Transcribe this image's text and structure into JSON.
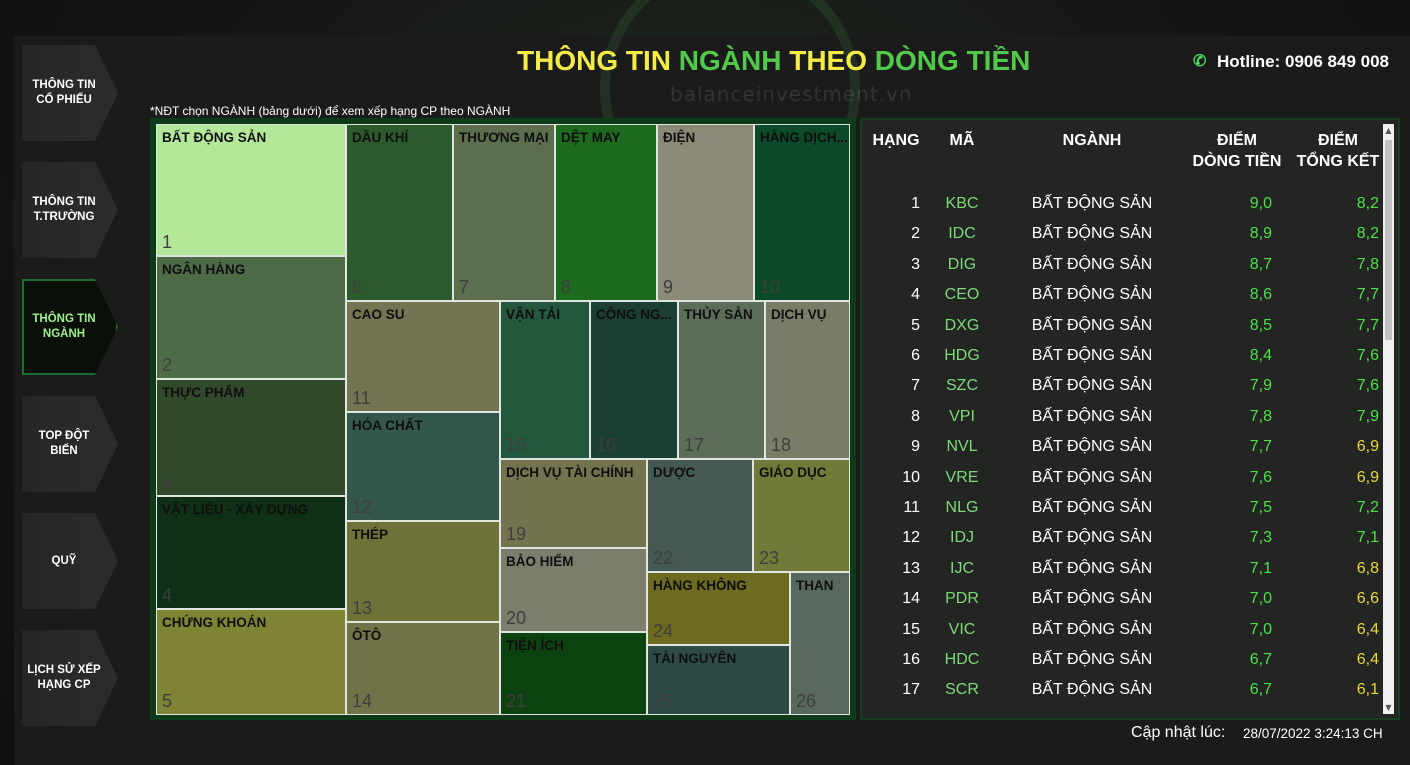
{
  "header": {
    "title_parts": [
      "THÔNG TIN",
      "NGÀNH",
      "THEO",
      "DÒNG TIỀN"
    ],
    "hotline": "Hotline: 0906 849 008",
    "watermark": "balanceinvestment.vn"
  },
  "nav": [
    {
      "label": "THÔNG TIN CỔ PHIẾU"
    },
    {
      "label": "THÔNG TIN T.TRƯỜNG"
    },
    {
      "label": "THÔNG TIN NGÀNH",
      "active": true
    },
    {
      "label": "TOP ĐỘT BIẾN"
    },
    {
      "label": "QUỸ"
    },
    {
      "label": "LỊCH SỬ XẾP HẠNG CP"
    }
  ],
  "note": "*NĐT chọn NGÀNH (bảng dưới) để xem xếp hạng CP theo NGÀNH",
  "treemap": [
    {
      "name": "BẤT ĐỘNG SẢN",
      "rank": "1",
      "color": "#b3e89a"
    },
    {
      "name": "NGÂN HÀNG",
      "rank": "2",
      "color": "#4d6b47"
    },
    {
      "name": "THỰC PHẨM",
      "rank": "3",
      "color": "#314a2c"
    },
    {
      "name": "VẬT LIỆU - XÂY DỰNG",
      "rank": "4",
      "color": "#0f3016"
    },
    {
      "name": "CHỨNG KHOÁN",
      "rank": "5",
      "color": "#7e8434"
    },
    {
      "name": "DẦU KHÍ",
      "rank": "6",
      "color": "#2d5a2d"
    },
    {
      "name": "THƯƠNG MẠI",
      "rank": "7",
      "color": "#5c6e4e"
    },
    {
      "name": "DỆT MAY",
      "rank": "8",
      "color": "#1e6a1e"
    },
    {
      "name": "ĐIỆN",
      "rank": "9",
      "color": "#8a8a76"
    },
    {
      "name": "HÀNG DỊCH...",
      "rank": "10",
      "color": "#0d4a2b"
    },
    {
      "name": "CAO SU",
      "rank": "11",
      "color": "#727452"
    },
    {
      "name": "HÓA CHẤT",
      "rank": "12",
      "color": "#33574a"
    },
    {
      "name": "THÉP",
      "rank": "13",
      "color": "#6f7238"
    },
    {
      "name": "ÔTÔ",
      "rank": "14",
      "color": "#727249"
    },
    {
      "name": "VẬN TẢI",
      "rank": "15",
      "color": "#23573e"
    },
    {
      "name": "CÔNG NG...",
      "rank": "16",
      "color": "#1b3f34"
    },
    {
      "name": "THỦY SẢN",
      "rank": "17",
      "color": "#5c6e57"
    },
    {
      "name": "DỊCH VỤ",
      "rank": "18",
      "color": "#7b7c67"
    },
    {
      "name": "DỊCH VỤ TÀI CHÍNH",
      "rank": "19",
      "color": "#73744f"
    },
    {
      "name": "BẢO HIỂM",
      "rank": "20",
      "color": "#7c7d6a"
    },
    {
      "name": "TIỆN ÍCH",
      "rank": "21",
      "color": "#0c4110"
    },
    {
      "name": "DƯỢC",
      "rank": "22",
      "color": "#445953"
    },
    {
      "name": "GIÁO DỤC",
      "rank": "23",
      "color": "#727a39"
    },
    {
      "name": "HÀNG KHÔNG",
      "rank": "24",
      "color": "#6e6a1f"
    },
    {
      "name": "TÀI NGUYÊN",
      "rank": "25",
      "color": "#2d4a44"
    },
    {
      "name": "THAN",
      "rank": "26",
      "color": "#57685c"
    }
  ],
  "table": {
    "headers": {
      "rank": "HẠNG",
      "code": "MÃ",
      "industry": "NGÀNH",
      "cashflow": "ĐIỂM\nDÒNG TIỀN",
      "total": "ĐIỂM\nTỔNG KẾT"
    },
    "rows": [
      {
        "rank": "1",
        "code": "KBC",
        "industry": "BẤT ĐỘNG SẢN",
        "cashflow": "9,0",
        "total": "8,2",
        "total_color": "#4ee04a"
      },
      {
        "rank": "2",
        "code": "IDC",
        "industry": "BẤT ĐỘNG SẢN",
        "cashflow": "8,9",
        "total": "8,2",
        "total_color": "#4ee04a"
      },
      {
        "rank": "3",
        "code": "DIG",
        "industry": "BẤT ĐỘNG SẢN",
        "cashflow": "8,7",
        "total": "7,8",
        "total_color": "#4ee04a"
      },
      {
        "rank": "4",
        "code": "CEO",
        "industry": "BẤT ĐỘNG SẢN",
        "cashflow": "8,6",
        "total": "7,7",
        "total_color": "#4ee04a"
      },
      {
        "rank": "5",
        "code": "DXG",
        "industry": "BẤT ĐỘNG SẢN",
        "cashflow": "8,5",
        "total": "7,7",
        "total_color": "#4ee04a"
      },
      {
        "rank": "6",
        "code": "HDG",
        "industry": "BẤT ĐỘNG SẢN",
        "cashflow": "8,4",
        "total": "7,6",
        "total_color": "#4ee04a"
      },
      {
        "rank": "7",
        "code": "SZC",
        "industry": "BẤT ĐỘNG SẢN",
        "cashflow": "7,9",
        "total": "7,6",
        "total_color": "#4ee04a"
      },
      {
        "rank": "8",
        "code": "VPI",
        "industry": "BẤT ĐỘNG SẢN",
        "cashflow": "7,8",
        "total": "7,9",
        "total_color": "#4ee04a"
      },
      {
        "rank": "9",
        "code": "NVL",
        "industry": "BẤT ĐỘNG SẢN",
        "cashflow": "7,7",
        "total": "6,9",
        "total_color": "#e8d83e"
      },
      {
        "rank": "10",
        "code": "VRE",
        "industry": "BẤT ĐỘNG SẢN",
        "cashflow": "7,6",
        "total": "6,9",
        "total_color": "#e8d83e"
      },
      {
        "rank": "11",
        "code": "NLG",
        "industry": "BẤT ĐỘNG SẢN",
        "cashflow": "7,5",
        "total": "7,2",
        "total_color": "#4ee04a"
      },
      {
        "rank": "12",
        "code": "IDJ",
        "industry": "BẤT ĐỘNG SẢN",
        "cashflow": "7,3",
        "total": "7,1",
        "total_color": "#4ee04a"
      },
      {
        "rank": "13",
        "code": "IJC",
        "industry": "BẤT ĐỘNG SẢN",
        "cashflow": "7,1",
        "total": "6,8",
        "total_color": "#e8d83e"
      },
      {
        "rank": "14",
        "code": "PDR",
        "industry": "BẤT ĐỘNG SẢN",
        "cashflow": "7,0",
        "total": "6,6",
        "total_color": "#e8d83e"
      },
      {
        "rank": "15",
        "code": "VIC",
        "industry": "BẤT ĐỘNG SẢN",
        "cashflow": "7,0",
        "total": "6,4",
        "total_color": "#e8d83e"
      },
      {
        "rank": "16",
        "code": "HDC",
        "industry": "BẤT ĐỘNG SẢN",
        "cashflow": "6,7",
        "total": "6,4",
        "total_color": "#e8d83e"
      },
      {
        "rank": "17",
        "code": "SCR",
        "industry": "BẤT ĐỘNG SẢN",
        "cashflow": "6,7",
        "total": "6,1",
        "total_color": "#e8d83e"
      }
    ]
  },
  "updated": {
    "label": "Cập nhật lúc:",
    "time": "28/07/2022 3:24:13 CH"
  },
  "colors": {
    "cashflow": "#4ee04a",
    "code": "#7fd97b",
    "good": "#4ee04a",
    "mid": "#e8d83e",
    "accent": "#52c94b",
    "title_yellow": "#f2ec45"
  }
}
